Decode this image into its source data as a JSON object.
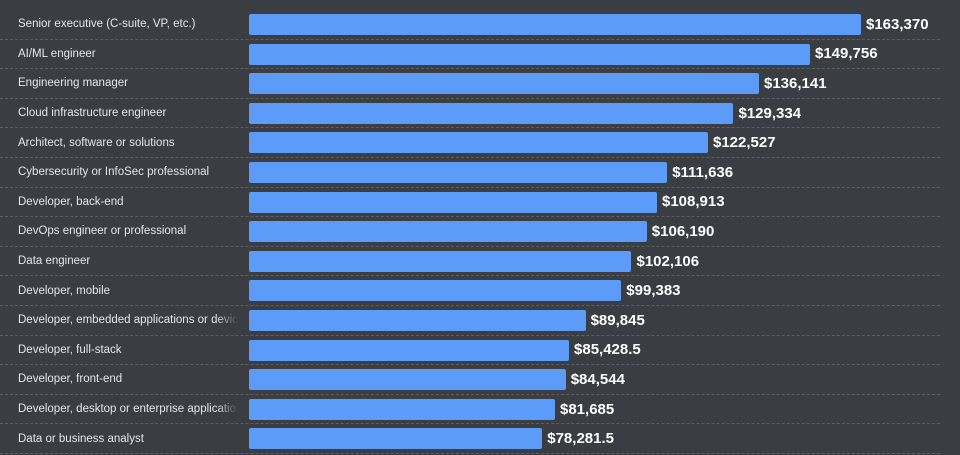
{
  "chart_data": {
    "type": "bar",
    "orientation": "horizontal",
    "categories": [
      "Senior executive (C-suite, VP, etc.)",
      "AI/ML engineer",
      "Engineering manager",
      "Cloud infrastructure engineer",
      "Architect, software or solutions",
      "Cybersecurity or InfoSec professional",
      "Developer, back-end",
      "DevOps engineer or professional",
      "Data engineer",
      "Developer, mobile",
      "Developer, embedded applications or devices",
      "Developer, full-stack",
      "Developer, front-end",
      "Developer, desktop or enterprise applications",
      "Data or business analyst"
    ],
    "values": [
      163370,
      149756,
      136141,
      129334,
      122527,
      111636,
      108913,
      106190,
      102106,
      99383,
      89845,
      85428.5,
      84544,
      81685,
      78281.5
    ],
    "value_labels": [
      "$163,370",
      "$149,756",
      "$136,141",
      "$129,334",
      "$122,527",
      "$111,636",
      "$108,913",
      "$106,190",
      "$102,106",
      "$99,383",
      "$89,845",
      "$85,428.5",
      "$84,544",
      "$81,685",
      "$78,281.5"
    ],
    "xlim": [
      0,
      163370
    ],
    "grid": false,
    "legend": "none"
  },
  "colors": {
    "background": "#3a3d42",
    "bar": "#5c9bf7",
    "text": "#e6e6e6",
    "value": "#ffffff"
  }
}
